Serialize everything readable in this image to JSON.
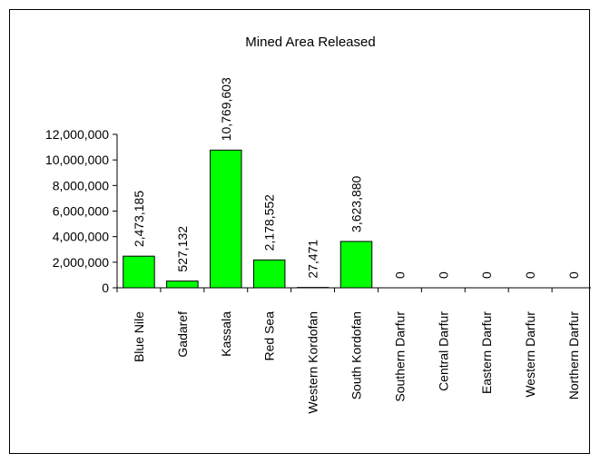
{
  "chart_data": {
    "type": "bar",
    "title": "Mined Area Released",
    "xlabel": "",
    "ylabel": "",
    "categories": [
      "Blue Nile",
      "Gadaref",
      "Kassala",
      "Red Sea",
      "Western Kordofan",
      "South Kordofan",
      "Southern Darfur",
      "Central Darfur",
      "Eastern Darfur",
      "Western Darfur",
      "Northern Darfur"
    ],
    "values": [
      2473185,
      527132,
      10769603,
      2178552,
      27471,
      3623880,
      0,
      0,
      0,
      0,
      0
    ],
    "data_labels": [
      "2,473,185",
      "527,132",
      "10,769,603",
      "2,178,552",
      "27,471",
      "3,623,880",
      "0",
      "0",
      "0",
      "0",
      "0"
    ],
    "ylim": [
      0,
      12000000
    ],
    "yticks": [
      0,
      2000000,
      4000000,
      6000000,
      8000000,
      10000000,
      12000000
    ],
    "ytick_labels": [
      "0",
      "2,000,000",
      "4,000,000",
      "6,000,000",
      "8,000,000",
      "10,000,000",
      "12,000,000"
    ],
    "bar_color": "#00ff00",
    "grid": false,
    "legend": "none"
  }
}
